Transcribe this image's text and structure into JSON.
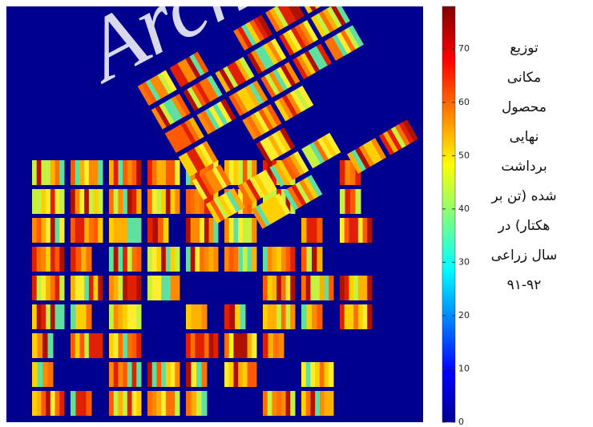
{
  "watermark": "Arch",
  "colorbar": {
    "ylim": [
      0,
      78
    ],
    "yticks": [
      0,
      10,
      20,
      30,
      40,
      50,
      60,
      70
    ]
  },
  "caption": {
    "lines": [
      "توزیع",
      "مکانی",
      "محصول",
      "نهایی",
      "برداشت",
      "شده (تن بر",
      "هکتار) در",
      "سال زراعی",
      "۹۱-۹۲"
    ]
  }
}
